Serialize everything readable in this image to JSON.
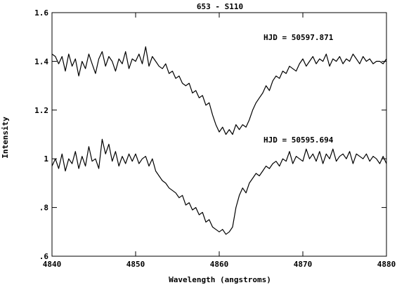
{
  "chart_data": {
    "type": "line",
    "title": "653 - S110",
    "xlabel": "Wavelength (angstroms)",
    "ylabel": "Intensity",
    "xlim": [
      4840,
      4880
    ],
    "ylim": [
      0.6,
      1.6
    ],
    "xticks": [
      4840,
      4850,
      4860,
      4870,
      4880
    ],
    "xtick_labels": [
      "4840",
      "4850",
      "4860",
      "4870",
      "4880"
    ],
    "yticks": [
      0.6,
      0.8,
      1.0,
      1.2,
      1.4,
      1.6
    ],
    "ytick_labels": [
      ".6",
      ".8",
      "1",
      "1.2",
      "1.4",
      "1.6"
    ],
    "grid": false,
    "annotations": [
      {
        "text": "HJD = 50597.871",
        "series": 0
      },
      {
        "text": "HJD = 50595.694",
        "series": 1
      }
    ],
    "series": [
      {
        "x": [
          4840.0,
          4840.4,
          4840.8,
          4841.2,
          4841.6,
          4842.0,
          4842.4,
          4842.8,
          4843.2,
          4843.6,
          4844.0,
          4844.4,
          4844.8,
          4845.2,
          4845.6,
          4846.0,
          4846.4,
          4846.8,
          4847.2,
          4847.6,
          4848.0,
          4848.4,
          4848.8,
          4849.2,
          4849.6,
          4850.0,
          4850.4,
          4850.8,
          4851.2,
          4851.6,
          4852.0,
          4852.4,
          4852.8,
          4853.2,
          4853.6,
          4854.0,
          4854.4,
          4854.8,
          4855.2,
          4855.6,
          4856.0,
          4856.4,
          4856.8,
          4857.2,
          4857.6,
          4858.0,
          4858.4,
          4858.8,
          4859.2,
          4859.6,
          4860.0,
          4860.4,
          4860.8,
          4861.2,
          4861.6,
          4862.0,
          4862.4,
          4862.8,
          4863.2,
          4863.6,
          4864.0,
          4864.4,
          4864.8,
          4865.2,
          4865.6,
          4866.0,
          4866.4,
          4866.8,
          4867.2,
          4867.6,
          4868.0,
          4868.4,
          4868.8,
          4869.2,
          4869.6,
          4870.0,
          4870.4,
          4870.8,
          4871.2,
          4871.6,
          4872.0,
          4872.4,
          4872.8,
          4873.2,
          4873.6,
          4874.0,
          4874.4,
          4874.8,
          4875.2,
          4875.6,
          4876.0,
          4876.4,
          4876.8,
          4877.2,
          4877.6,
          4878.0,
          4878.4,
          4878.8,
          4879.2,
          4879.6,
          4880.0
        ],
        "values": [
          1.43,
          1.42,
          1.39,
          1.42,
          1.36,
          1.43,
          1.38,
          1.41,
          1.34,
          1.4,
          1.37,
          1.43,
          1.39,
          1.35,
          1.41,
          1.44,
          1.38,
          1.42,
          1.4,
          1.36,
          1.41,
          1.39,
          1.44,
          1.37,
          1.41,
          1.4,
          1.43,
          1.39,
          1.46,
          1.38,
          1.42,
          1.4,
          1.38,
          1.37,
          1.39,
          1.35,
          1.36,
          1.33,
          1.34,
          1.31,
          1.3,
          1.31,
          1.27,
          1.28,
          1.25,
          1.26,
          1.22,
          1.23,
          1.18,
          1.14,
          1.11,
          1.13,
          1.1,
          1.12,
          1.1,
          1.14,
          1.12,
          1.14,
          1.13,
          1.16,
          1.2,
          1.23,
          1.25,
          1.27,
          1.3,
          1.28,
          1.32,
          1.34,
          1.33,
          1.36,
          1.35,
          1.38,
          1.37,
          1.36,
          1.39,
          1.41,
          1.38,
          1.4,
          1.42,
          1.39,
          1.41,
          1.4,
          1.43,
          1.38,
          1.41,
          1.4,
          1.42,
          1.39,
          1.41,
          1.4,
          1.43,
          1.41,
          1.39,
          1.42,
          1.4,
          1.41,
          1.39,
          1.4,
          1.4,
          1.39,
          1.41
        ]
      },
      {
        "x": [
          4840.0,
          4840.4,
          4840.8,
          4841.2,
          4841.6,
          4842.0,
          4842.4,
          4842.8,
          4843.2,
          4843.6,
          4844.0,
          4844.4,
          4844.8,
          4845.2,
          4845.6,
          4846.0,
          4846.4,
          4846.8,
          4847.2,
          4847.6,
          4848.0,
          4848.4,
          4848.8,
          4849.2,
          4849.6,
          4850.0,
          4850.4,
          4850.8,
          4851.2,
          4851.6,
          4852.0,
          4852.4,
          4852.8,
          4853.2,
          4853.6,
          4854.0,
          4854.4,
          4854.8,
          4855.2,
          4855.6,
          4856.0,
          4856.4,
          4856.8,
          4857.2,
          4857.6,
          4858.0,
          4858.4,
          4858.8,
          4859.2,
          4859.6,
          4860.0,
          4860.4,
          4860.8,
          4861.2,
          4861.6,
          4862.0,
          4862.4,
          4862.8,
          4863.2,
          4863.6,
          4864.0,
          4864.4,
          4864.8,
          4865.2,
          4865.6,
          4866.0,
          4866.4,
          4866.8,
          4867.2,
          4867.6,
          4868.0,
          4868.4,
          4868.8,
          4869.2,
          4869.6,
          4870.0,
          4870.4,
          4870.8,
          4871.2,
          4871.6,
          4872.0,
          4872.4,
          4872.8,
          4873.2,
          4873.6,
          4874.0,
          4874.4,
          4874.8,
          4875.2,
          4875.6,
          4876.0,
          4876.4,
          4876.8,
          4877.2,
          4877.6,
          4878.0,
          4878.4,
          4878.8,
          4879.2,
          4879.6,
          4880.0
        ],
        "values": [
          0.97,
          1.0,
          0.96,
          1.02,
          0.95,
          1.0,
          0.98,
          1.03,
          0.96,
          1.01,
          0.97,
          1.05,
          0.99,
          1.0,
          0.96,
          1.08,
          1.02,
          1.06,
          0.99,
          1.03,
          0.97,
          1.01,
          0.98,
          1.02,
          0.99,
          1.02,
          0.98,
          1.0,
          1.01,
          0.97,
          1.0,
          0.95,
          0.93,
          0.91,
          0.9,
          0.88,
          0.87,
          0.86,
          0.84,
          0.85,
          0.81,
          0.82,
          0.79,
          0.8,
          0.77,
          0.78,
          0.74,
          0.75,
          0.72,
          0.71,
          0.7,
          0.71,
          0.69,
          0.7,
          0.72,
          0.8,
          0.85,
          0.88,
          0.86,
          0.9,
          0.92,
          0.94,
          0.93,
          0.95,
          0.97,
          0.96,
          0.98,
          0.99,
          0.97,
          1.0,
          0.99,
          1.03,
          0.98,
          1.01,
          1.0,
          0.99,
          1.04,
          1.0,
          1.02,
          0.99,
          1.03,
          0.98,
          1.02,
          1.0,
          1.04,
          0.99,
          1.01,
          1.02,
          1.0,
          1.03,
          0.98,
          1.02,
          1.01,
          1.0,
          1.02,
          0.99,
          1.01,
          1.0,
          0.98,
          1.01,
          0.98
        ]
      }
    ]
  }
}
